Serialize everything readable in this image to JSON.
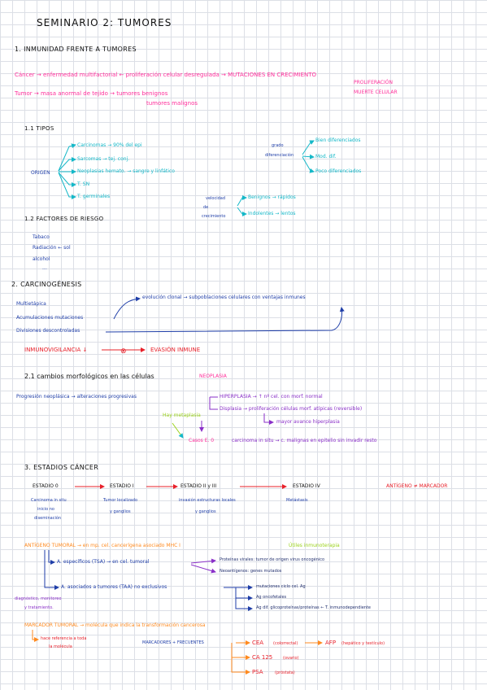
{
  "title": "SEMINARIO 2: TUMORES",
  "s1": {
    "heading": "1. INMUNIDAD FRENTE A TUMORES",
    "l1a": "Cáncer → enfermedad multifactorial ← proliferación celular desregulada → MUTACIONES EN CRECIMIENTO",
    "l1b": "PROLIFERACIÓN",
    "l1c": "MUERTE CELULAR",
    "l2a": "Tumor → masa anormal de tejido → tumores benignos",
    "l2b": "tumores malignos"
  },
  "tipos": {
    "heading": "1.1 TIPOS",
    "origen": "ORIGEN",
    "o1": "Carcinomas → 90% del epi",
    "o2": "Sarcomas → tej. conj.",
    "o3": "Neoplasias hemato. → sangre y linfático",
    "o4": "T. SN",
    "o5": "T. germinales",
    "grado": "grado",
    "dif": "diferenciación",
    "g1": "Bien diferenciados",
    "g2": "Mod. dif.",
    "g3": "Poco diferenciados",
    "vel1": "velocidad",
    "vel2": "de",
    "vel3": "crecimiento",
    "v1": "Benignos → rápidos",
    "v2": "Indolentes → lentos"
  },
  "factores": {
    "heading": "1.2 FACTORES DE RIESGO",
    "f1": "Tabaco",
    "f2": "Radiación ← sol",
    "f3": "alcohol",
    "f4": "..."
  },
  "s2": {
    "heading": "2. CARCINOGÉNESIS",
    "c1": "Multietápica",
    "c2": "Acumulaciones mutaciones",
    "c3": "Divisiones descontroladas",
    "evol": "evolución clonal → subpoblaciones celulares con ventajas inmunes",
    "inmuno": "INMUNOVIGILANCIA ↓",
    "evasion": "EVASIÓN INMUNE"
  },
  "s21": {
    "heading": "2.1 cambios morfológicos en las células",
    "neo": "NEOPLASIA",
    "prog": "Progresión neoplásica → alteraciones progresivas",
    "hiper": "HIPERPLASIA → ↑ nº cel. con morf. normal",
    "disp": "Displasia → proliferación células morf. atípicas (reversible)",
    "mayor": "mayor avance hiperplasia",
    "hay": "Hay metaplasia",
    "caso": "Casos E. 0",
    "carc": "carcinoma in situ → c. malignas en epitelio sin invadir resto"
  },
  "s3": {
    "heading": "3. ESTADIOS CÁNCER",
    "e0": "ESTADIO 0",
    "e1": "ESTADIO I",
    "e23": "ESTADIO II y III",
    "e4": "ESTADIO IV",
    "ant": "ANTÍGENO ≠ MARCADOR",
    "d0a": "Carcinoma in situ",
    "d0b": "inicio no",
    "d0c": "diseminación",
    "d1a": "Tumor localizado",
    "d1b": "y ganglios",
    "d2a": "invasión estructuras locales",
    "d2b": "y ganglios",
    "d4": "Metástasis"
  },
  "ag": {
    "line": "ANTÍGENO TUMORAL → en mp. cel. cancerígena asociado MHC I",
    "util": "Útiles inmunoterapia",
    "tsa": "A. específicos (TSA) → en cel. tumoral",
    "prot": "Proteínas virales: tumor de origen virus oncogénico",
    "neo": "Neoantígenos: genes mutados",
    "taa": "A. asociados a tumores (TAA) no exclusivos",
    "mut": "mutaciones ciclo cel. Ag",
    "onco": "Ag oncofetales",
    "dif": "Ag dif. glicoproteínas/proteínas ← T. inmunodependiente",
    "diag1": "diagnóstico, monitoreo",
    "diag2": "y tratamiento.",
    "marc": "MARCADOR TUMORAL → molécula que indica la transformación cancerosa",
    "hace1": "hace referencia a toda",
    "hace2": "la molécula",
    "mfrec": "MARCADORES + FRECUENTES",
    "cea": "CEA",
    "cea_n": "(colorrectal)",
    "afp": "AFP",
    "afp_n": "(hepático y testículo)",
    "ca": "CA 125",
    "ca_n": "(ovario)",
    "psa": "PSA",
    "psa_n": "(próstata)"
  },
  "colors": {
    "pink": "#ff2e9a",
    "blue": "#1f3ea8",
    "teal": "#14b8c8",
    "red": "#e8202a",
    "green": "#9bd21a",
    "orange": "#ff8a1f",
    "purple": "#8a2fc8"
  }
}
